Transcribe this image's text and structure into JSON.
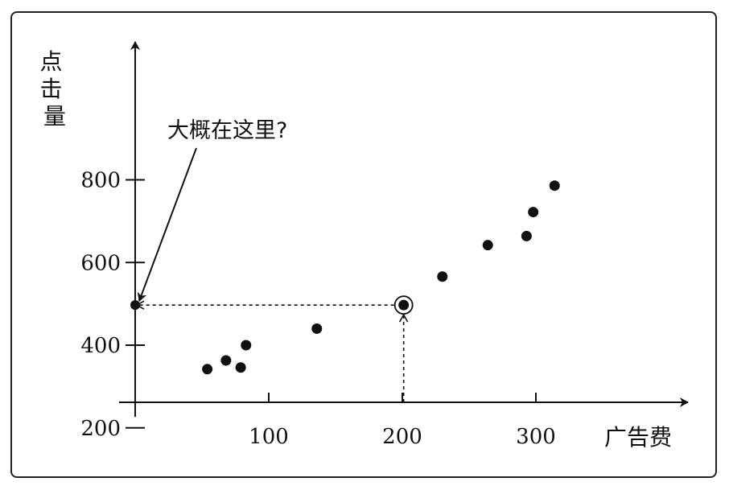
{
  "chart_data": {
    "type": "scatter",
    "xlabel": "广告费",
    "ylabel": "点击量",
    "xlim": [
      0,
      420
    ],
    "ylim": [
      60,
      930
    ],
    "x_ticks": [
      100,
      200,
      300
    ],
    "y_ticks": [
      200,
      400,
      600,
      800
    ],
    "tick_labels_x": [
      "100",
      "200",
      "300"
    ],
    "tick_labels_y": [
      "200",
      "400",
      "600",
      "800"
    ],
    "grid": false,
    "points": [
      {
        "x": 54,
        "y": 342
      },
      {
        "x": 68,
        "y": 363
      },
      {
        "x": 79,
        "y": 346
      },
      {
        "x": 83,
        "y": 400
      },
      {
        "x": 136,
        "y": 440
      },
      {
        "x": 230,
        "y": 566
      },
      {
        "x": 264,
        "y": 642
      },
      {
        "x": 293,
        "y": 664
      },
      {
        "x": 298,
        "y": 722
      },
      {
        "x": 314,
        "y": 786
      }
    ],
    "highlight_point": {
      "x": 201,
      "y": 497
    },
    "y_intercept_point": {
      "x": 0,
      "y": 497
    },
    "annotation": "大概在这里?"
  }
}
